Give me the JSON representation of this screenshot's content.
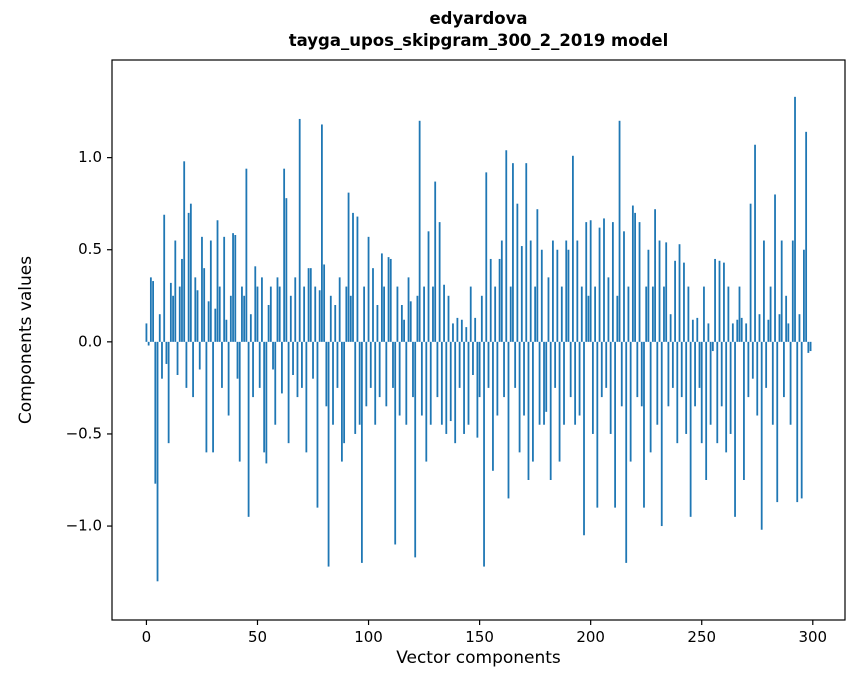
{
  "figure": {
    "title_line1": "edyardova",
    "title_line2": "tayga_upos_skipgram_300_2_2019 model",
    "xlabel": "Vector components",
    "ylabel": "Components values"
  },
  "chart_data": {
    "type": "bar",
    "title": "edyardova\ntayga_upos_skipgram_300_2_2019 model",
    "xlabel": "Vector components",
    "ylabel": "Components values",
    "bar_color": "#1f77b4",
    "n_components": 300,
    "xlim": [
      -15.5,
      314.5
    ],
    "ylim": [
      -1.51,
      1.53
    ],
    "xticks": [
      0,
      50,
      100,
      150,
      200,
      250,
      300
    ],
    "yticks": [
      -1.0,
      -0.5,
      0.0,
      0.5,
      1.0
    ],
    "grid": false,
    "legend": "none",
    "values": [
      0.1,
      -0.02,
      0.35,
      0.33,
      -0.77,
      -1.3,
      0.15,
      -0.2,
      0.69,
      -0.12,
      -0.55,
      0.32,
      0.25,
      0.55,
      -0.18,
      0.3,
      0.45,
      0.98,
      -0.25,
      0.7,
      0.75,
      -0.3,
      0.35,
      0.28,
      -0.15,
      0.57,
      0.4,
      -0.6,
      0.22,
      0.55,
      -0.6,
      0.18,
      0.66,
      0.3,
      -0.25,
      0.57,
      0.12,
      -0.4,
      0.25,
      0.59,
      0.58,
      -0.2,
      -0.65,
      0.3,
      0.25,
      0.94,
      -0.95,
      0.15,
      -0.3,
      0.41,
      0.3,
      -0.25,
      0.35,
      -0.6,
      -0.66,
      0.2,
      0.3,
      -0.15,
      -0.45,
      0.35,
      0.3,
      -0.28,
      0.94,
      0.78,
      -0.55,
      0.25,
      -0.18,
      0.35,
      -0.3,
      1.21,
      -0.25,
      0.3,
      -0.6,
      0.4,
      0.4,
      -0.2,
      0.3,
      -0.9,
      0.28,
      1.18,
      0.42,
      -0.35,
      -1.22,
      0.25,
      -0.45,
      0.2,
      -0.25,
      0.35,
      -0.65,
      -0.55,
      0.3,
      0.81,
      0.25,
      0.7,
      -0.5,
      0.68,
      -0.45,
      -1.2,
      0.3,
      -0.35,
      0.57,
      -0.25,
      0.4,
      -0.45,
      0.2,
      -0.3,
      0.48,
      0.3,
      -0.35,
      0.46,
      0.45,
      -0.25,
      -1.1,
      0.3,
      -0.4,
      0.2,
      0.12,
      -0.45,
      0.35,
      0.22,
      -0.3,
      -1.17,
      0.25,
      1.2,
      -0.4,
      0.3,
      -0.65,
      0.6,
      -0.45,
      0.3,
      0.87,
      -0.3,
      0.65,
      -0.45,
      0.31,
      -0.5,
      0.25,
      -0.43,
      0.1,
      -0.55,
      0.13,
      -0.25,
      0.12,
      -0.5,
      0.08,
      -0.45,
      0.3,
      -0.18,
      0.13,
      -0.52,
      -0.3,
      0.25,
      -1.22,
      0.92,
      -0.25,
      0.45,
      -0.7,
      0.3,
      -0.4,
      0.45,
      0.55,
      -0.3,
      1.04,
      -0.85,
      0.3,
      0.97,
      -0.25,
      0.75,
      -0.6,
      0.52,
      -0.4,
      0.97,
      -0.75,
      0.55,
      -0.65,
      0.3,
      0.72,
      -0.45,
      0.5,
      -0.45,
      -0.38,
      0.35,
      -0.75,
      0.55,
      -0.25,
      0.5,
      -0.65,
      0.3,
      -0.45,
      0.55,
      0.5,
      -0.3,
      1.01,
      -0.45,
      0.55,
      -0.4,
      0.3,
      -1.05,
      0.65,
      0.25,
      0.66,
      -0.5,
      0.3,
      -0.9,
      0.62,
      -0.3,
      0.67,
      -0.25,
      0.35,
      -0.5,
      0.65,
      -0.9,
      0.25,
      1.2,
      -0.35,
      0.6,
      -1.2,
      0.3,
      -0.65,
      0.74,
      0.7,
      -0.3,
      0.65,
      -0.35,
      -0.9,
      0.3,
      0.5,
      -0.6,
      0.3,
      0.72,
      -0.45,
      0.55,
      -1.0,
      0.3,
      0.54,
      -0.35,
      0.15,
      -0.25,
      0.44,
      -0.55,
      0.53,
      -0.3,
      0.43,
      -0.5,
      0.3,
      -0.95,
      0.12,
      -0.35,
      0.13,
      -0.25,
      -0.55,
      0.3,
      -0.75,
      0.1,
      -0.45,
      -0.05,
      0.45,
      -0.55,
      0.44,
      -0.35,
      0.43,
      -0.6,
      0.3,
      -0.5,
      0.1,
      -0.95,
      0.12,
      0.3,
      0.13,
      -0.75,
      0.1,
      -0.3,
      0.75,
      -0.2,
      1.07,
      -0.4,
      0.15,
      -1.02,
      0.55,
      -0.25,
      0.12,
      0.3,
      -0.45,
      0.8,
      -0.87,
      0.15,
      0.55,
      -0.3,
      0.25,
      0.1,
      -0.45,
      0.55,
      1.33,
      -0.87,
      0.15,
      -0.85,
      0.5,
      1.14,
      -0.06,
      -0.05
    ]
  }
}
